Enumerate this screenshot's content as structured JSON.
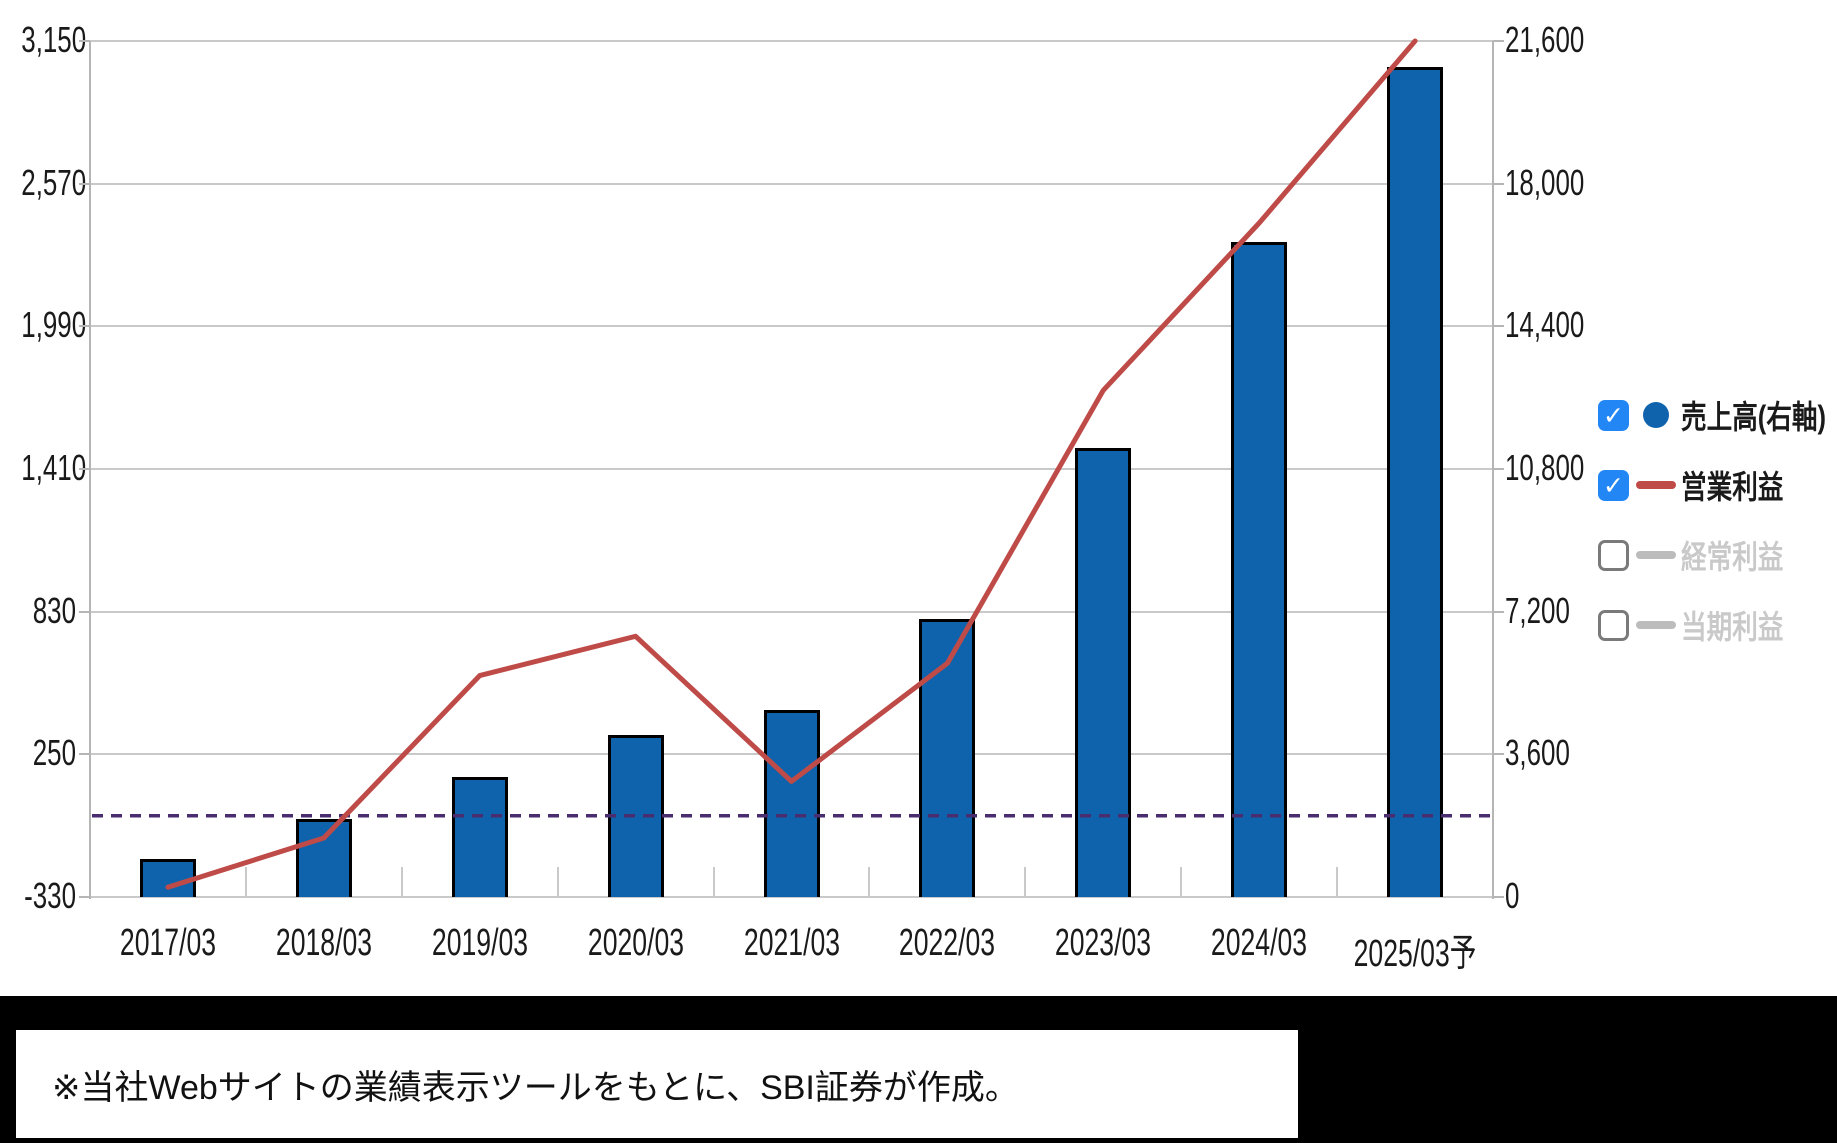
{
  "chart_data": {
    "type": "bar+line combo",
    "categories": [
      "2017/03",
      "2018/03",
      "2019/03",
      "2020/03",
      "2021/03",
      "2022/03",
      "2023/03",
      "2024/03",
      "2025/03予"
    ],
    "series": [
      {
        "name": "売上高(右軸)",
        "type": "bar",
        "axis": "right",
        "values": [
          960,
          1960,
          3020,
          4100,
          4710,
          7020,
          11330,
          16540,
          20950
        ]
      },
      {
        "name": "営業利益",
        "type": "line",
        "axis": "left",
        "values": [
          -290,
          -90,
          570,
          730,
          140,
          620,
          1730,
          2410,
          3150
        ]
      }
    ],
    "left_axis": {
      "labels": [
        "3,150",
        "2,570",
        "1,990",
        "1,410",
        "830",
        "250",
        "-330"
      ],
      "min": -330,
      "max": 3150
    },
    "right_axis": {
      "labels": [
        "21,600",
        "18,000",
        "14,400",
        "10,800",
        "7,200",
        "3,600",
        "0"
      ],
      "min": 0,
      "max": 21600
    },
    "reference_line": {
      "axis": "left",
      "value": 0,
      "style": "dashed"
    },
    "grid": "horizontal-only",
    "legend_position": "right"
  },
  "legend": {
    "items": [
      {
        "label": "売上高(右軸)",
        "checked": true,
        "marker": "circle",
        "color": "#0f63ac",
        "text_color": "#1a1a1a"
      },
      {
        "label": "営業利益",
        "checked": true,
        "marker": "line",
        "color": "#bf4b48",
        "text_color": "#1a1a1a"
      },
      {
        "label": "経常利益",
        "checked": false,
        "marker": "line",
        "color": "#bcbcbc",
        "text_color": "#c9c9c9"
      },
      {
        "label": "当期利益",
        "checked": false,
        "marker": "line",
        "color": "#bcbcbc",
        "text_color": "#c9c9c9"
      }
    ],
    "check_glyph": "✓"
  },
  "footnote": {
    "text": "※当社Webサイトの業績表示ツールをもとに、SBI証券が作成。"
  },
  "colors": {
    "page_bg": "#000000",
    "panel_bg": "#ffffff",
    "bar_fill": "#0f63ac",
    "bar_border": "#000000",
    "line": "#bf4b48",
    "reference_line": "#4a2d6e",
    "grid": "#c9c9c9",
    "axis": "#b5b5b5",
    "axis_text": "#1a1a1a",
    "disabled_text": "#c9c9c9",
    "checkbox_on": "#2287f5"
  }
}
